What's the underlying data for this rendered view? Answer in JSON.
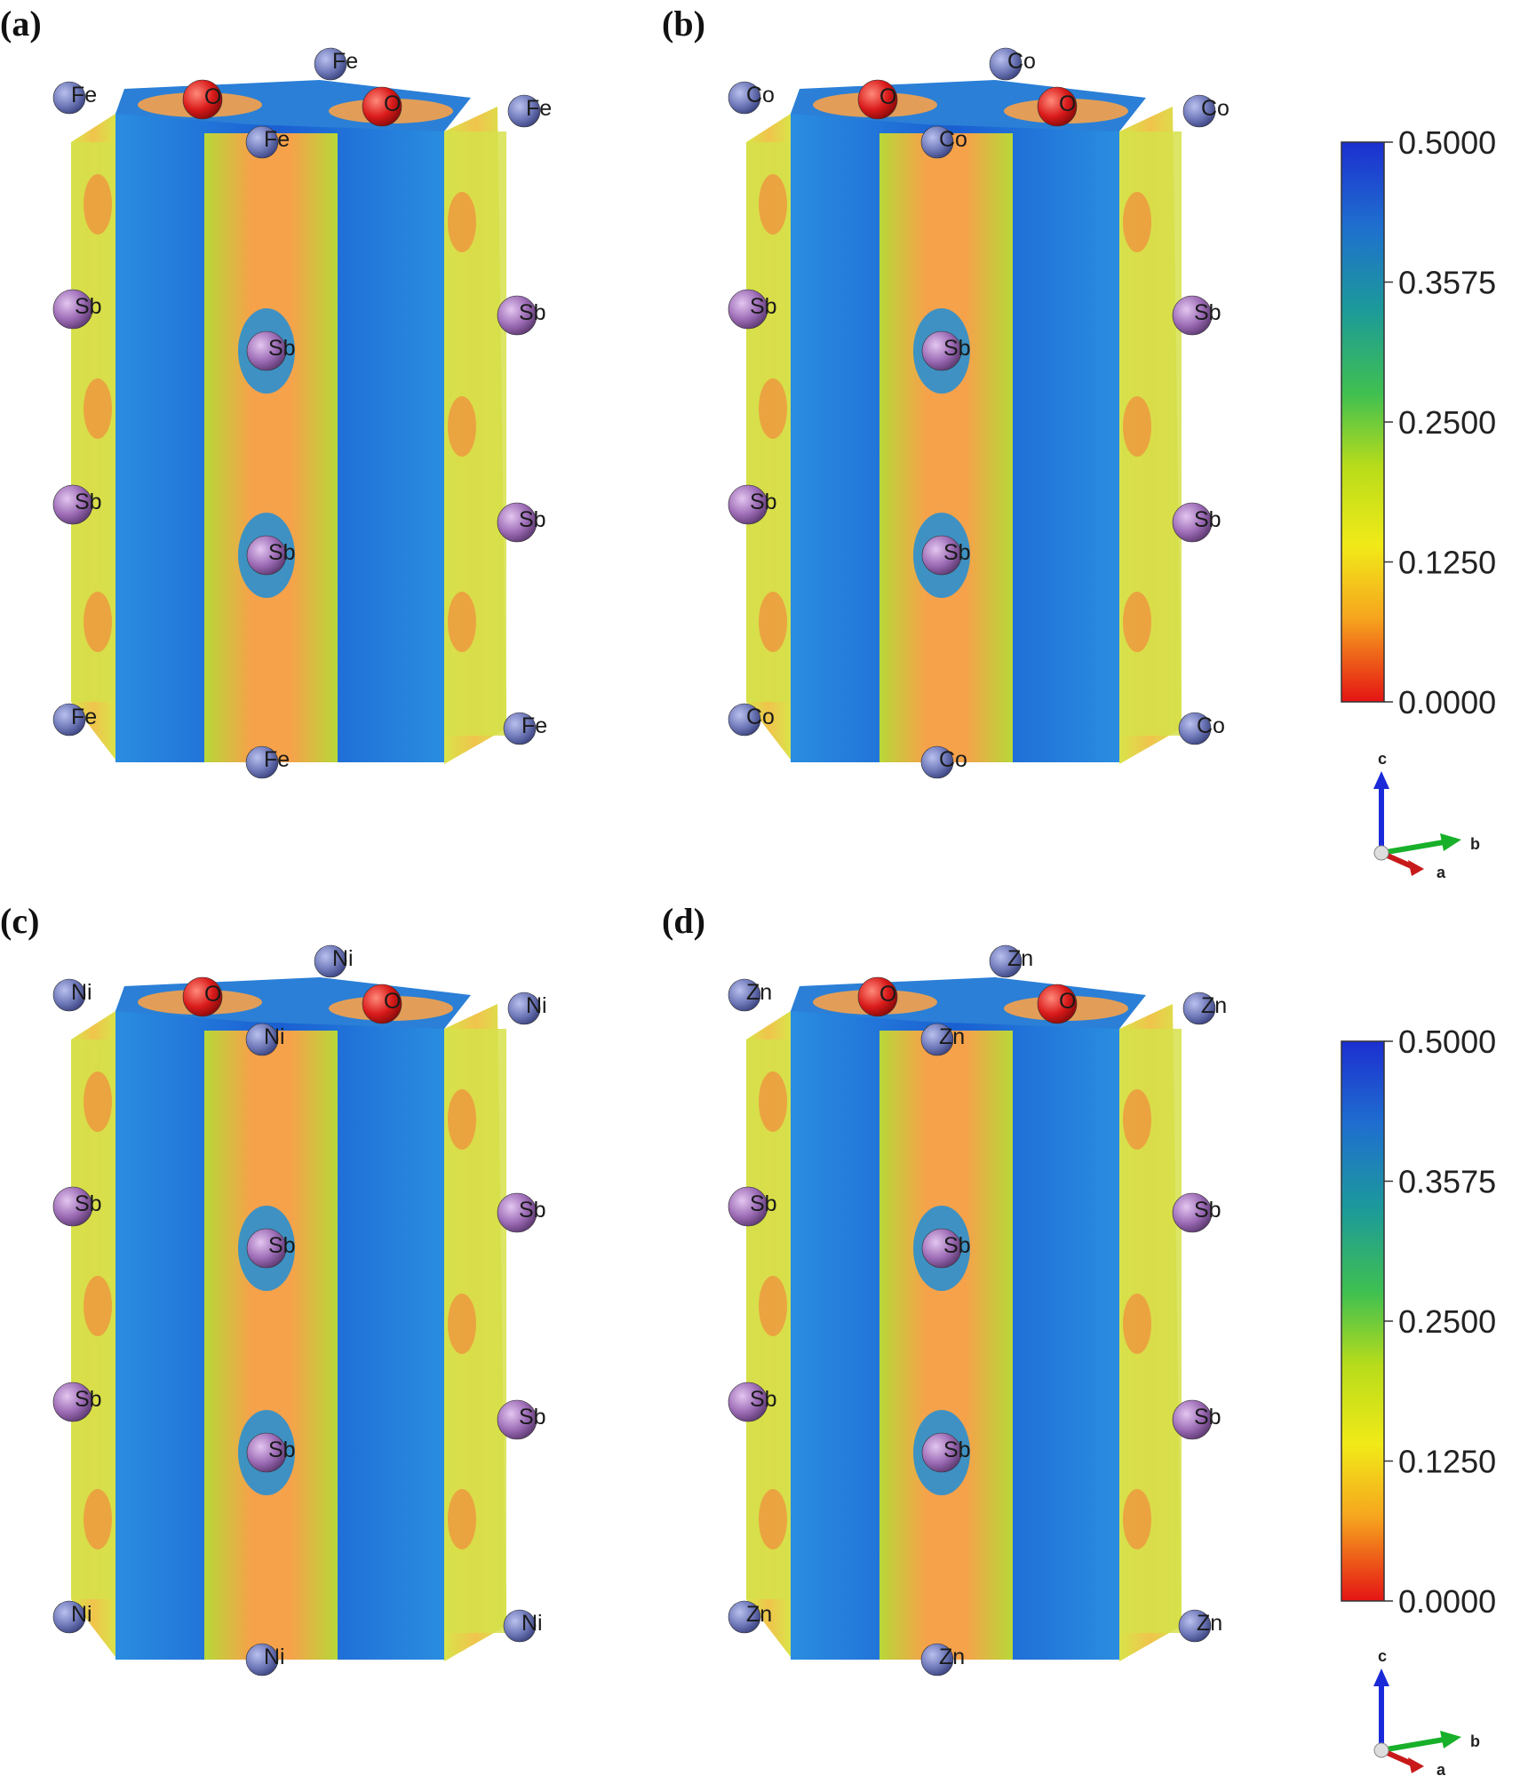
{
  "figure": {
    "panels": [
      {
        "label": "(a)",
        "metal": "Fe",
        "atom_labels": [
          "Fe",
          "Fe",
          "Fe",
          "Fe",
          "Fe",
          "Fe",
          "Fe",
          "O",
          "O",
          "Sb",
          "Sb",
          "Sb",
          "Sb",
          "Sb",
          "Sb"
        ]
      },
      {
        "label": "(b)",
        "metal": "Co",
        "atom_labels": [
          "Co",
          "Co",
          "Co",
          "Co",
          "Co",
          "Co",
          "Co",
          "O",
          "O",
          "Sb",
          "Sb",
          "Sb",
          "Sb",
          "Sb",
          "Sb"
        ]
      },
      {
        "label": "(c)",
        "metal": "Ni",
        "atom_labels": [
          "Ni",
          "Ni",
          "Ni",
          "Ni",
          "Ni",
          "Ni",
          "Ni",
          "O",
          "O",
          "Sb",
          "Sb",
          "Sb",
          "Sb",
          "Sb",
          "Sb"
        ]
      },
      {
        "label": "(d)",
        "metal": "Zn",
        "atom_labels": [
          "Zn",
          "Zn",
          "Zn",
          "Zn",
          "Zn",
          "Zn",
          "Zn",
          "O",
          "O",
          "Sb",
          "Sb",
          "Sb",
          "Sb",
          "Sb",
          "Sb"
        ]
      }
    ],
    "colorbar": {
      "ticks": [
        "0.5000",
        "0.3575",
        "0.2500",
        "0.1250",
        "0.0000"
      ],
      "colors": [
        "#1a3fd1",
        "#1f7fc4",
        "#2fb87a",
        "#9ad21c",
        "#e8e81a",
        "#f6b61c",
        "#f06a2a",
        "#e11a1a"
      ]
    },
    "axes": {
      "c": "c",
      "b": "b",
      "a": "a"
    },
    "colors": {
      "iso_high": "#1e5fd6",
      "iso_mid": "#9cd63a",
      "iso_low": "#f47a2c",
      "atom_metal": "#6e78b8",
      "atom_O": "#d91a1a",
      "atom_Sb": "#9c6bb5"
    }
  }
}
